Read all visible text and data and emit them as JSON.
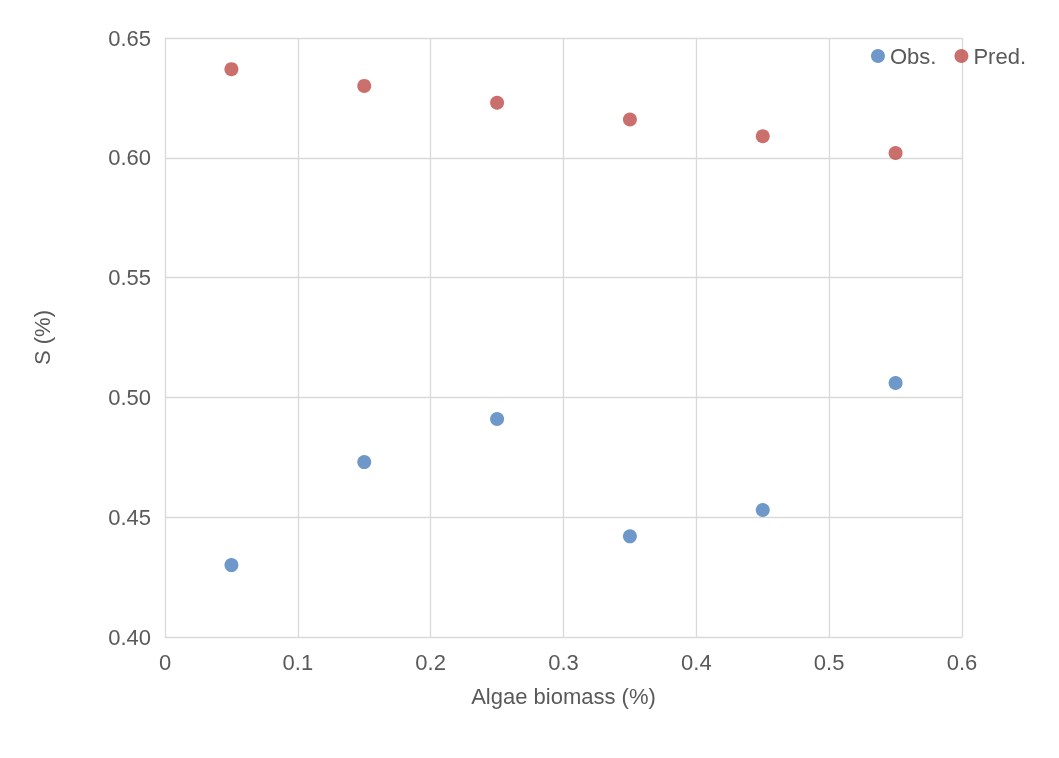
{
  "chart_data": {
    "type": "scatter",
    "xlabel": "Algae biomass (%)",
    "ylabel": "S (%)",
    "x": [
      0.05,
      0.15,
      0.25,
      0.35,
      0.45,
      0.55
    ],
    "series": [
      {
        "name": "Obs.",
        "color": "#4a7ebb",
        "values": [
          0.43,
          0.473,
          0.491,
          0.442,
          0.453,
          0.506
        ]
      },
      {
        "name": "Pred.",
        "color": "#be4b48",
        "values": [
          0.637,
          0.63,
          0.623,
          0.616,
          0.609,
          0.602
        ]
      }
    ],
    "xlim": [
      0,
      0.6
    ],
    "xticks": [
      0,
      0.1,
      0.2,
      0.3,
      0.4,
      0.5,
      0.6
    ],
    "ylim": [
      0.4,
      0.65
    ],
    "yticks": [
      {
        "value": 0.4,
        "label": "0.40"
      },
      {
        "value": 0.45,
        "label": "0.45"
      },
      {
        "value": 0.5,
        "label": "0.50"
      },
      {
        "value": 0.55,
        "label": "0.55"
      },
      {
        "value": 0.6,
        "label": "0.60"
      },
      {
        "value": 0.65,
        "label": "0.65"
      }
    ],
    "grid": true,
    "legend": "top right",
    "marker": "circle"
  }
}
